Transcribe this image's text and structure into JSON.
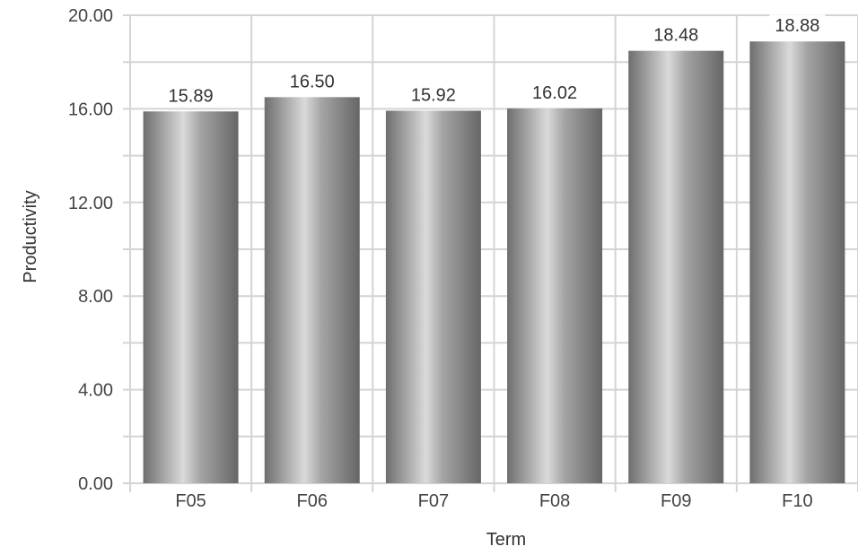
{
  "chart_data": {
    "type": "bar",
    "categories": [
      "F05",
      "F06",
      "F07",
      "F08",
      "F09",
      "F10"
    ],
    "values": [
      15.89,
      16.5,
      15.92,
      16.02,
      18.48,
      18.88
    ],
    "data_labels": [
      "15.89",
      "16.50",
      "15.92",
      "16.02",
      "18.48",
      "18.88"
    ],
    "xlabel": "Term",
    "ylabel": "Productivity",
    "ylim": [
      0,
      20
    ],
    "y_ticks": [
      0,
      4,
      8,
      12,
      16,
      20
    ],
    "y_tick_labels": [
      "0.00",
      "4.00",
      "8.00",
      "12.00",
      "16.00",
      "20.00"
    ],
    "grid": true,
    "legend": "none",
    "colors": {
      "bar_dark": "#6e6e6e",
      "bar_light": "#d9d9d9",
      "grid": "#d4d4d4",
      "label_bg": "#ffffff"
    }
  }
}
